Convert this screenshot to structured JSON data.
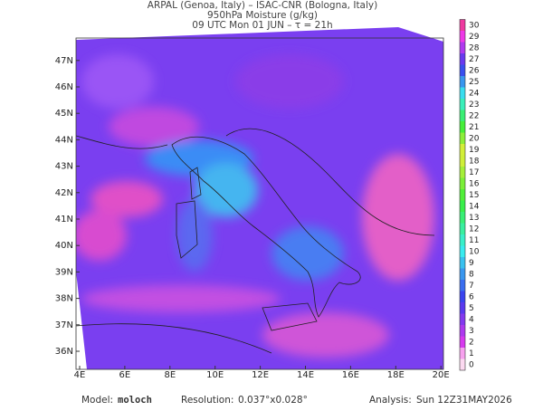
{
  "header": {
    "lines": [
      "ARPAL (Genoa, Italy)  –  ISAC-CNR (Bologna, Italy)",
      "950hPa Moisture (g/kg)",
      "09 UTC Mon 01 JUN  –  τ = 21h"
    ]
  },
  "map": {
    "lon_labels": [
      "4E",
      "6E",
      "8E",
      "10E",
      "12E",
      "14E",
      "16E",
      "18E",
      "20E"
    ],
    "lat_labels": [
      "36N",
      "37N",
      "38N",
      "39N",
      "40N",
      "41N",
      "42N",
      "43N",
      "44N",
      "45N",
      "46N",
      "47N"
    ]
  },
  "colorbar": {
    "labels": [
      0,
      1,
      2,
      3,
      4,
      5,
      6,
      7,
      8,
      9,
      10,
      11,
      12,
      13,
      14,
      15,
      16,
      17,
      18,
      19,
      20,
      21,
      22,
      23,
      24,
      25,
      26,
      27,
      28,
      29,
      30
    ]
  },
  "footer": {
    "model_label": "Model:",
    "model": "moloch",
    "resolution_label": "Resolution:",
    "resolution": "0.037°x0.028°",
    "analysis_label": "Analysis:",
    "analysis": "Sun 12Z31MAY2026"
  }
}
